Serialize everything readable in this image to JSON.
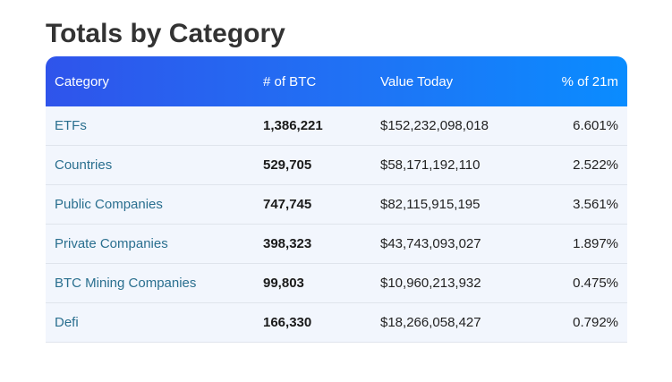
{
  "title": "Totals by Category",
  "table": {
    "headers": {
      "category": "Category",
      "btc": "# of BTC",
      "value": "Value Today",
      "pct": "% of 21m"
    },
    "rows": [
      {
        "category": "ETFs",
        "btc": "1,386,221",
        "value": "$152,232,098,018",
        "pct": "6.601%"
      },
      {
        "category": "Countries",
        "btc": "529,705",
        "value": "$58,171,192,110",
        "pct": "2.522%"
      },
      {
        "category": "Public Companies",
        "btc": "747,745",
        "value": "$82,115,915,195",
        "pct": "3.561%"
      },
      {
        "category": "Private Companies",
        "btc": "398,323",
        "value": "$43,743,093,027",
        "pct": "1.897%"
      },
      {
        "category": "BTC Mining Companies",
        "btc": "99,803",
        "value": "$10,960,213,932",
        "pct": "0.475%"
      },
      {
        "category": "Defi",
        "btc": "166,330",
        "value": "$18,266,058,427",
        "pct": "0.792%"
      }
    ]
  },
  "colors": {
    "header_gradient_start": "#2f54eb",
    "header_gradient_end": "#0a8cff",
    "row_background": "#f2f6fd",
    "category_text": "#2a6f8f",
    "title_text": "#333333"
  }
}
